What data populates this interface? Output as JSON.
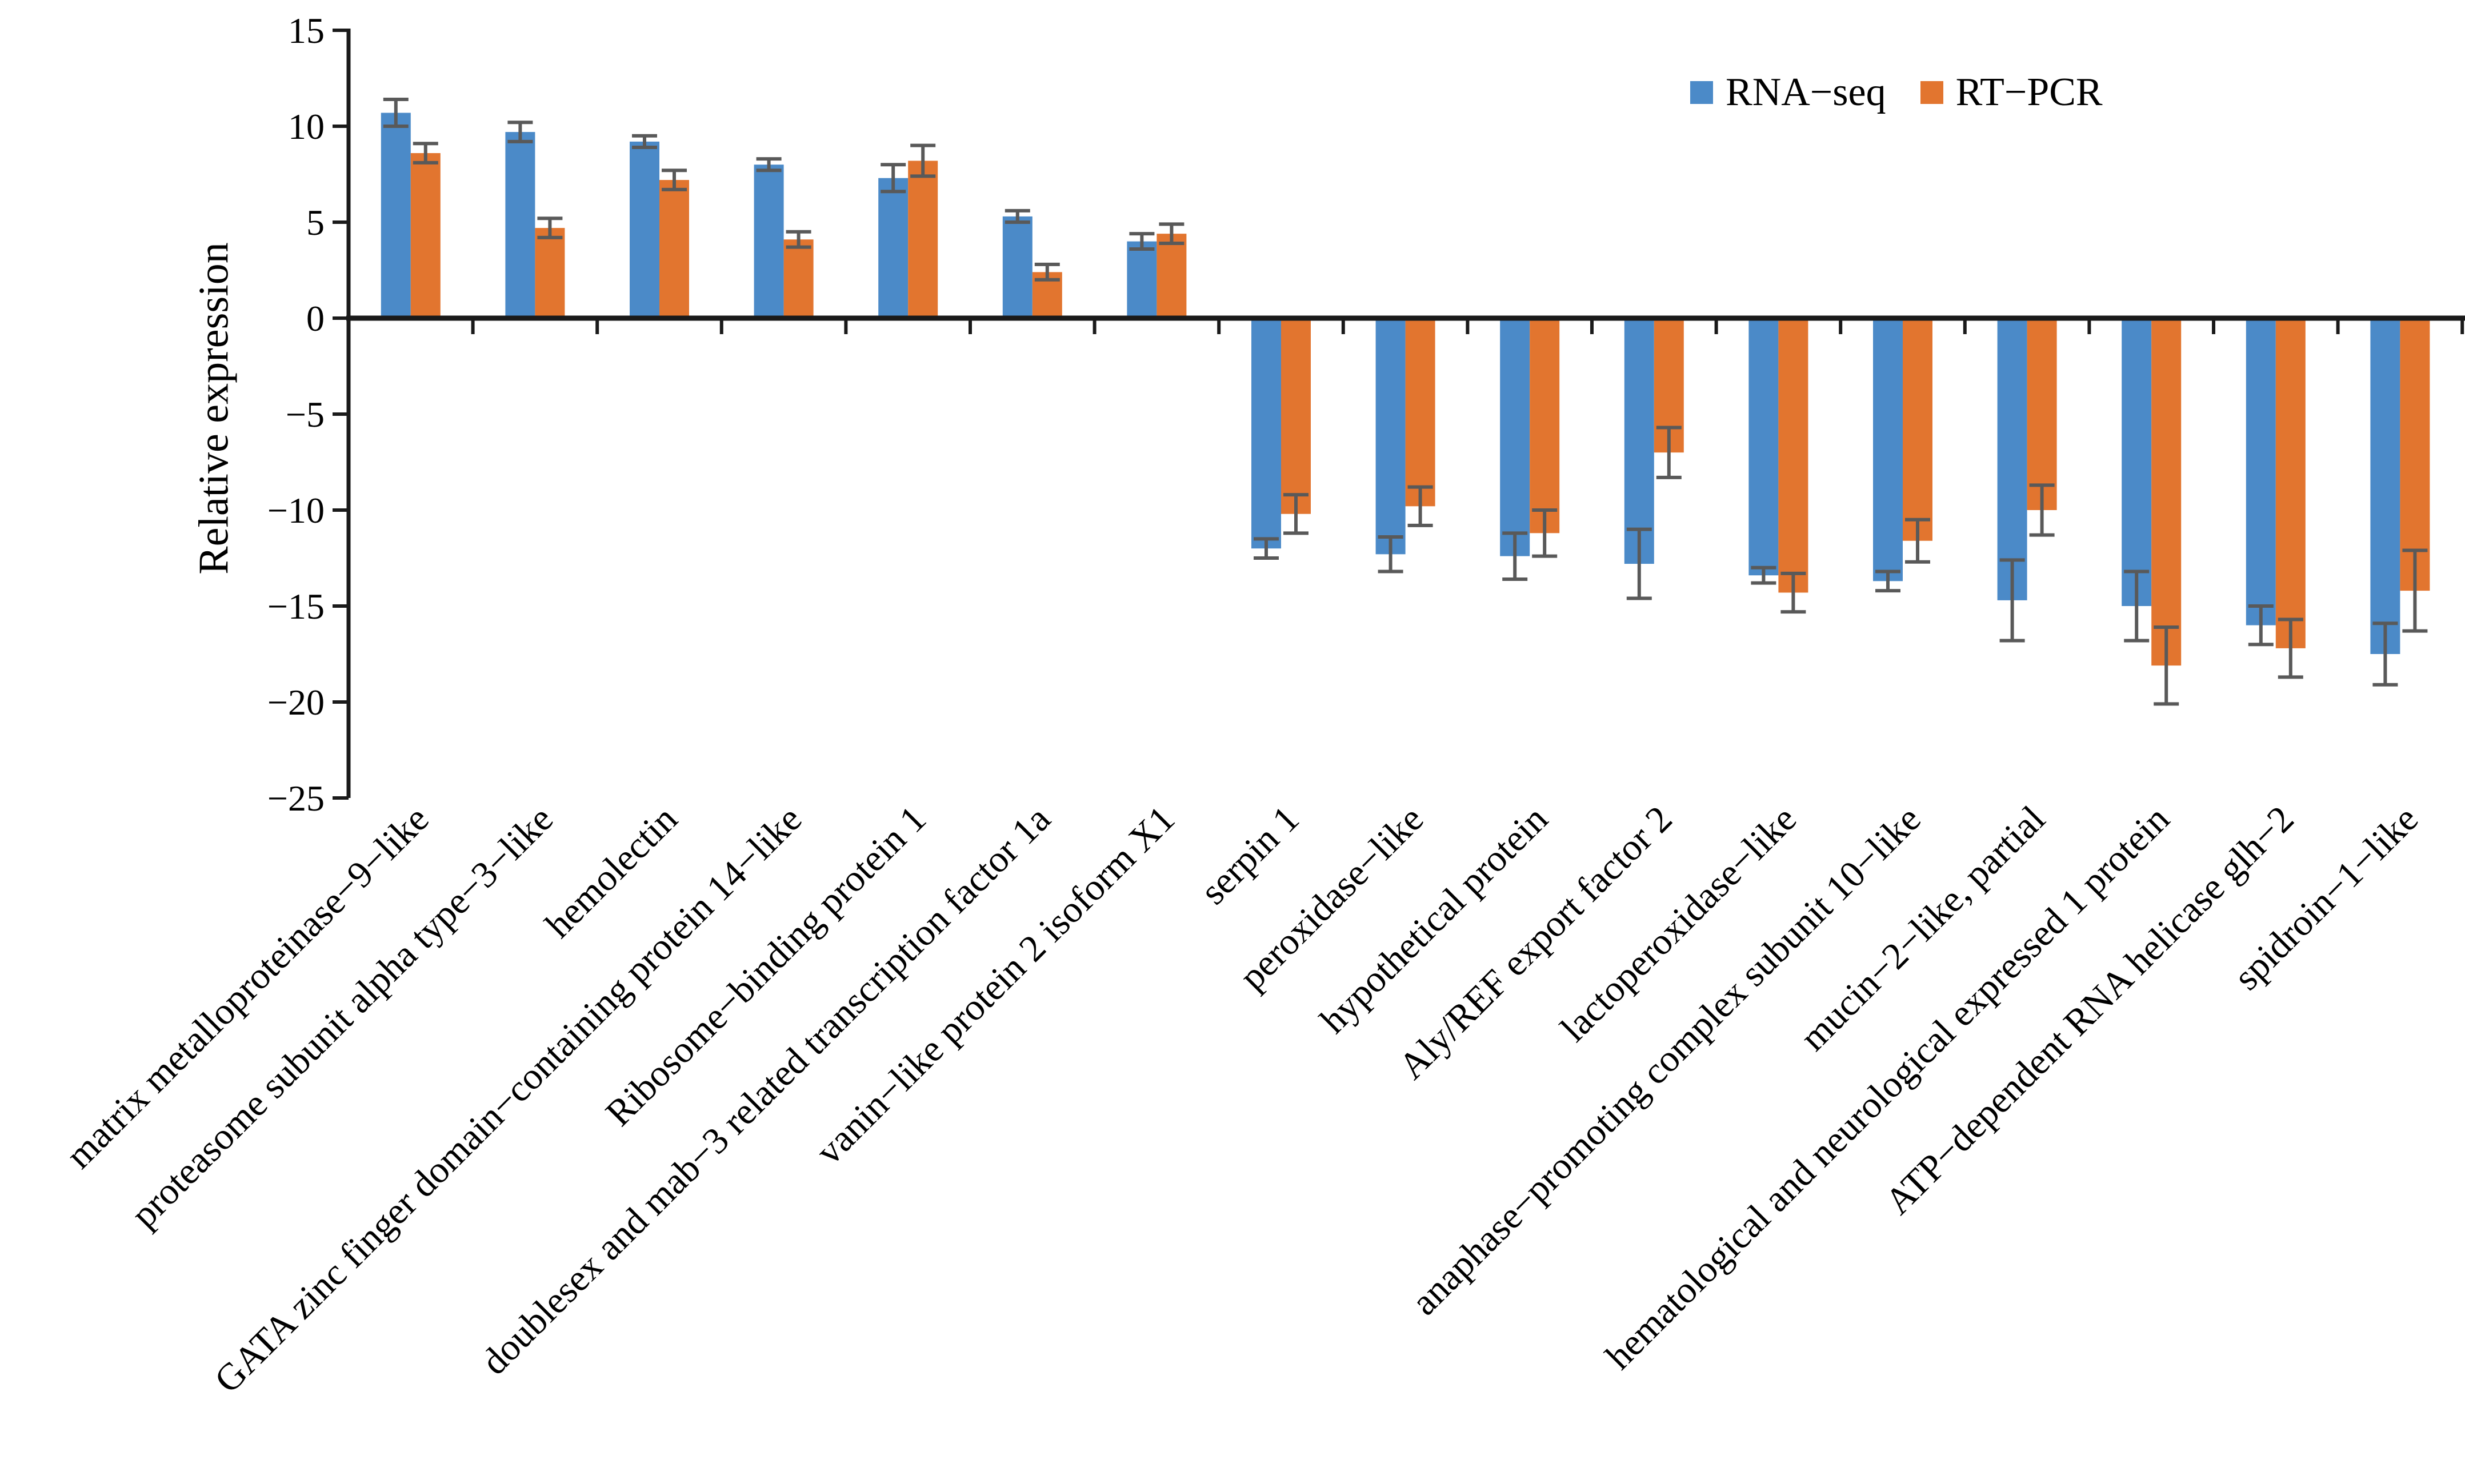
{
  "figure": {
    "background": "#ffffff"
  },
  "chart_data": {
    "type": "bar",
    "title": "",
    "xlabel": "",
    "ylabel": "Relative expression",
    "ylim": [
      -25,
      15
    ],
    "yticks": [
      15,
      10,
      5,
      0,
      -5,
      -10,
      -15,
      -20,
      -25
    ],
    "grid": false,
    "legend_position": "top-right",
    "axis_color": "#1a1a1a",
    "error_bar_color": "#595959",
    "categories": [
      "matrix metalloproteinase−9−like",
      "proteasome subunit alpha type−3−like",
      "hemolectin",
      "GATA zinc finger domain−containing protein 14−like",
      "Ribosome−binding protein 1",
      "doublesex and mab−3 related transcription factor 1a",
      "vanin−like protein 2 isoform X1",
      "serpin 1",
      "peroxidase−like",
      "hypothetical protein",
      "Aly/REF export factor 2",
      "lactoperoxidase−like",
      "anaphase−promoting complex subunit 10−like",
      "mucin−2−like, partial",
      "hematological and neurological expressed 1 protein",
      "ATP−dependent RNA helicase glh−2",
      "spidroin−1−like"
    ],
    "series": [
      {
        "name": "RNA−seq",
        "color": "#4B8AC8",
        "values": [
          10.7,
          9.7,
          9.2,
          8.0,
          7.3,
          5.3,
          4.0,
          -12.0,
          -12.3,
          -12.4,
          -12.8,
          -13.4,
          -13.7,
          -14.7,
          -15.0,
          -16.0,
          -17.5
        ],
        "errors": [
          0.7,
          0.5,
          0.3,
          0.3,
          0.7,
          0.3,
          0.4,
          0.5,
          0.9,
          1.2,
          1.8,
          0.4,
          0.5,
          2.1,
          1.8,
          1.0,
          1.6
        ]
      },
      {
        "name": "RT−PCR",
        "color": "#E2752F",
        "values": [
          8.6,
          4.7,
          7.2,
          4.1,
          8.2,
          2.4,
          4.4,
          -10.2,
          -9.8,
          -11.2,
          -7.0,
          -14.3,
          -11.6,
          -10.0,
          -18.1,
          -17.2,
          -14.2
        ],
        "errors": [
          0.5,
          0.5,
          0.5,
          0.4,
          0.8,
          0.4,
          0.5,
          1.0,
          1.0,
          1.2,
          1.3,
          1.0,
          1.1,
          1.3,
          2.0,
          1.5,
          2.1
        ]
      }
    ]
  }
}
